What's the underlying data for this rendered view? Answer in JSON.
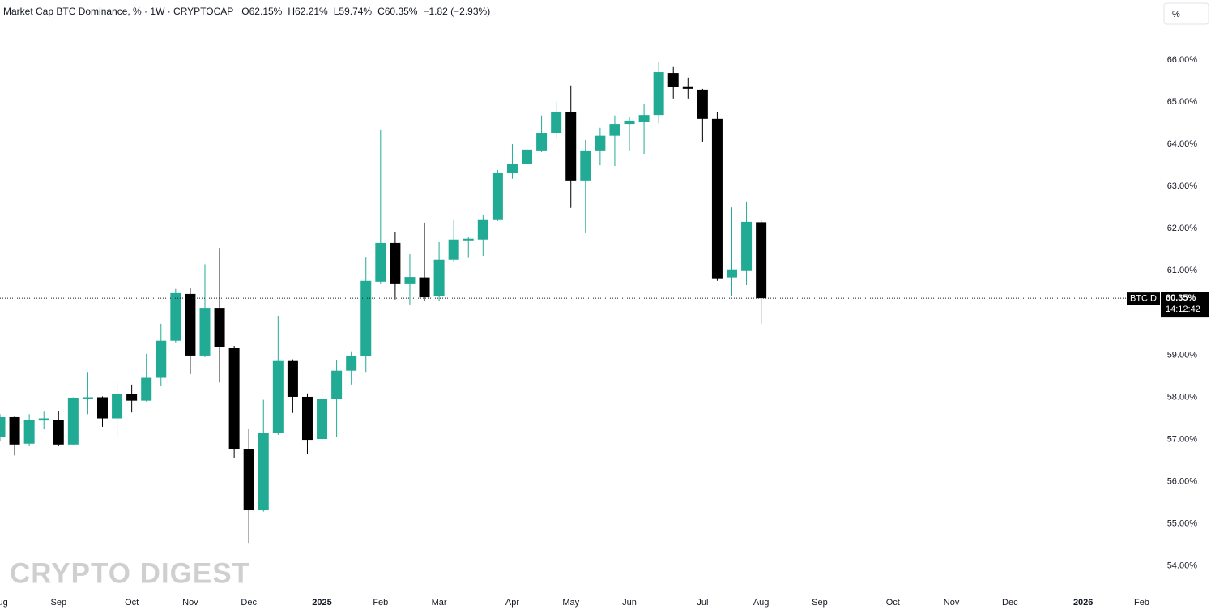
{
  "chart_data": {
    "type": "candlestick",
    "title": "Market Cap BTC Dominance, % · 1W · CRYPTOCAP",
    "ohlc_labels": [
      "O62.15%",
      "H62.21%",
      "L59.74%",
      "C60.35%"
    ],
    "change_label": "−1.82 (−2.93%)",
    "scale_button": "%",
    "watermark": "CRYPTO DIGEST",
    "up_color": "#22ab94",
    "down_color": "#000000",
    "ylim": [
      53.4,
      67.42
    ],
    "yticks": [
      {
        "value": 54,
        "label": "54.00%"
      },
      {
        "value": 55,
        "label": "55.00%"
      },
      {
        "value": 56,
        "label": "56.00%"
      },
      {
        "value": 57,
        "label": "57.00%"
      },
      {
        "value": 58,
        "label": "58.00%"
      },
      {
        "value": 59,
        "label": "59.00%"
      },
      {
        "value": 60,
        "label": "60.00%"
      },
      {
        "value": 61,
        "label": "61.00%"
      },
      {
        "value": 62,
        "label": "62.00%"
      },
      {
        "value": 63,
        "label": "63.00%"
      },
      {
        "value": 64,
        "label": "64.00%"
      },
      {
        "value": 65,
        "label": "65.00%"
      },
      {
        "value": 66,
        "label": "66.00%"
      }
    ],
    "last_price": {
      "symbol": "BTC.D",
      "value": 60.35,
      "label": "60.35%",
      "countdown": "14:12:42"
    },
    "categories": [
      "Aug",
      null,
      null,
      null,
      "Sep",
      null,
      null,
      null,
      null,
      "Oct",
      null,
      null,
      null,
      "Nov",
      null,
      null,
      null,
      "Dec",
      null,
      null,
      null,
      null,
      "2025",
      null,
      null,
      null,
      "Feb",
      null,
      null,
      null,
      "Mar",
      null,
      null,
      null,
      null,
      "Apr",
      null,
      null,
      null,
      "May",
      null,
      null,
      null,
      "Jun",
      null,
      null,
      null,
      null,
      "Jul",
      null,
      null,
      null,
      "Aug",
      null,
      null,
      null,
      "Sep",
      null,
      null,
      null,
      null,
      "Oct",
      null,
      null,
      null,
      "Nov",
      null,
      null,
      null,
      "Dec",
      null,
      null,
      null,
      null,
      "2026",
      null,
      null,
      null,
      "Feb"
    ],
    "open": [
      57.05,
      57.53,
      56.9,
      57.45,
      57.47,
      56.88,
      57.99,
      58.0,
      57.5,
      58.08,
      57.92,
      58.46,
      59.34,
      60.45,
      58.99,
      60.12,
      59.18,
      56.78,
      55.32,
      57.15,
      58.86,
      58.01,
      57.01,
      57.97,
      58.63,
      58.97,
      60.74,
      61.66,
      60.7,
      60.84,
      60.39,
      61.26,
      61.72,
      61.74,
      62.22,
      63.31,
      63.54,
      63.85,
      64.27,
      64.77,
      63.14,
      63.85,
      64.2,
      64.48,
      64.54,
      64.69,
      65.69,
      65.37,
      65.29,
      64.6,
      60.84,
      61.01,
      62.15,
      null,
      null,
      null,
      null,
      null,
      null,
      null,
      null,
      null,
      null,
      null,
      null,
      null,
      null,
      null,
      null,
      null,
      null,
      null,
      null,
      null,
      null,
      null,
      null,
      null,
      null
    ],
    "high": [
      57.6,
      57.55,
      57.6,
      57.66,
      57.67,
      58.0,
      58.6,
      58.02,
      58.35,
      58.3,
      59.03,
      59.74,
      60.57,
      60.59,
      61.15,
      61.54,
      59.22,
      57.24,
      57.94,
      59.93,
      58.9,
      58.09,
      58.2,
      58.88,
      59.09,
      61.33,
      64.35,
      61.91,
      61.41,
      62.14,
      61.68,
      62.22,
      61.8,
      62.31,
      63.39,
      64.0,
      64.08,
      64.68,
      65.0,
      65.39,
      64.1,
      64.39,
      64.68,
      64.64,
      64.96,
      65.94,
      65.83,
      65.58,
      65.31,
      64.77,
      62.5,
      62.64,
      62.21,
      null,
      null,
      null,
      null,
      null,
      null,
      null,
      null,
      null,
      null,
      null,
      null,
      null,
      null,
      null,
      null,
      null,
      null,
      null,
      null,
      null,
      null,
      null,
      null,
      null,
      null
    ],
    "low": [
      56.95,
      56.62,
      56.85,
      57.24,
      56.85,
      56.88,
      57.6,
      57.3,
      57.07,
      57.64,
      57.9,
      58.26,
      59.3,
      58.55,
      58.95,
      58.35,
      56.55,
      54.55,
      55.29,
      57.11,
      57.63,
      56.65,
      56.98,
      57.05,
      58.3,
      58.6,
      60.7,
      60.32,
      60.2,
      60.28,
      60.28,
      61.22,
      61.32,
      61.35,
      62.18,
      63.18,
      63.35,
      63.81,
      64.12,
      62.49,
      61.89,
      63.5,
      63.48,
      63.85,
      63.77,
      64.5,
      65.08,
      65.08,
      64.06,
      60.76,
      60.39,
      60.66,
      59.74,
      null,
      null,
      null,
      null,
      null,
      null,
      null,
      null,
      null,
      null,
      null,
      null,
      null,
      null,
      null,
      null,
      null,
      null,
      null,
      null,
      null,
      null,
      null,
      null,
      null,
      null
    ],
    "close": [
      57.53,
      56.88,
      57.47,
      57.5,
      56.88,
      57.99,
      58.0,
      57.5,
      58.07,
      57.92,
      58.46,
      59.34,
      60.47,
      58.99,
      60.12,
      59.2,
      56.78,
      55.32,
      57.15,
      58.86,
      58.01,
      56.99,
      57.97,
      58.63,
      58.99,
      60.76,
      61.66,
      60.7,
      60.85,
      60.37,
      61.26,
      61.74,
      61.76,
      62.22,
      63.33,
      63.54,
      63.87,
      64.27,
      64.77,
      63.14,
      63.85,
      64.2,
      64.48,
      64.56,
      64.69,
      65.71,
      65.35,
      65.31,
      64.6,
      60.82,
      61.03,
      62.16,
      60.35,
      null,
      null,
      null,
      null,
      null,
      null,
      null,
      null,
      null,
      null,
      null,
      null,
      null,
      null,
      null,
      null,
      null,
      null,
      null,
      null,
      null,
      null,
      null,
      null,
      null,
      null
    ]
  }
}
